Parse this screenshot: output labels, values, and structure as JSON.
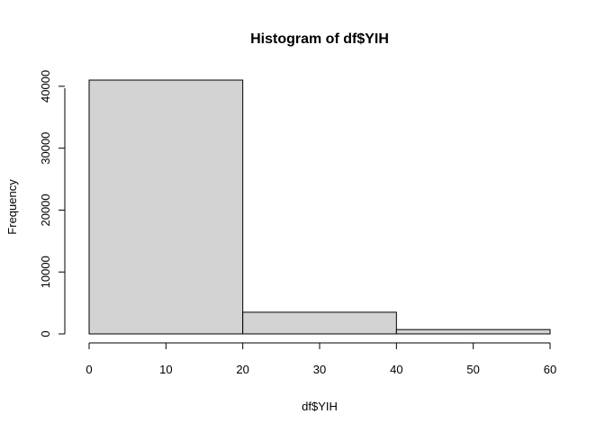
{
  "chart_data": {
    "type": "bar",
    "title": "Histogram of df$YIH",
    "xlabel": "df$YIH",
    "ylabel": "Frequency",
    "bins": [
      {
        "start": 0,
        "end": 20,
        "count": 41000
      },
      {
        "start": 20,
        "end": 40,
        "count": 3500
      },
      {
        "start": 40,
        "end": 60,
        "count": 700
      }
    ],
    "xlim": [
      0,
      60
    ],
    "ylim": [
      0,
      41000
    ],
    "x_ticks": [
      "0",
      "10",
      "20",
      "30",
      "40",
      "50",
      "60"
    ],
    "y_ticks": [
      "0",
      "10000",
      "20000",
      "30000",
      "40000"
    ],
    "bar_fill": "#d3d3d3",
    "bar_stroke": "#000000",
    "grid": false,
    "legend": "none"
  }
}
